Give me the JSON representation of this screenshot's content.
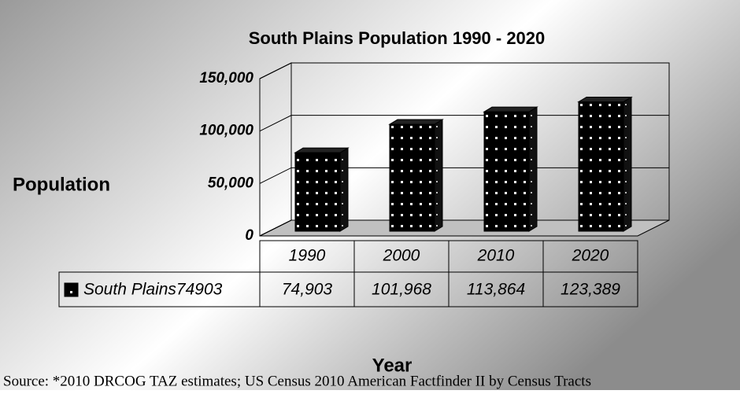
{
  "chart_data": {
    "type": "bar",
    "title": "South Plains Population 1990 - 2020",
    "y_label": "Population",
    "x_label": "Year",
    "source": "Source: *2010 DRCOG TAZ estimates; US Census 2010 American Factfinder II by Census Tracts",
    "categories": [
      "1990",
      "2000",
      "2010",
      "2020"
    ],
    "series": [
      {
        "name": "South Plains74903",
        "color": "#000000",
        "values": [
          74903,
          101968,
          113864,
          123389
        ],
        "value_labels": [
          "74,903",
          "101,968",
          "113,864",
          "123,389"
        ]
      }
    ],
    "ylim": [
      0,
      150000
    ],
    "yticks": [
      0,
      {
        "value": 50000,
        "label": "50,000"
      },
      {
        "value": 100000,
        "label": "100,000"
      },
      {
        "value": 150000,
        "label": "150,000"
      }
    ],
    "grid": true
  }
}
